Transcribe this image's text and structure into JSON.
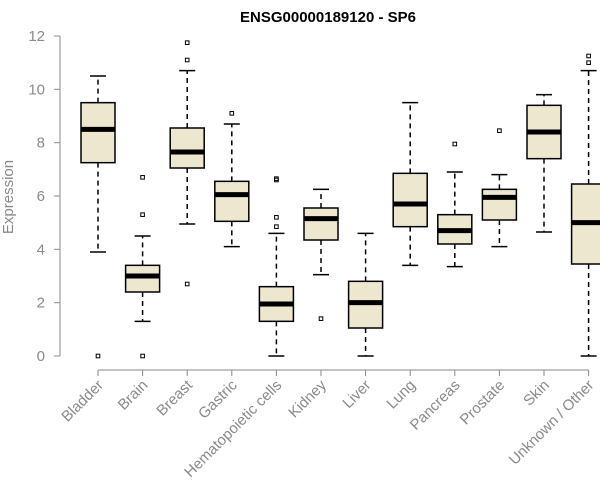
{
  "chart_data": {
    "type": "boxplot",
    "title": "ENSG00000189120 - SP6",
    "xlabel": "",
    "ylabel": "Expression",
    "ylim": [
      0,
      12
    ],
    "yticks": [
      0,
      2,
      4,
      6,
      8,
      10,
      12
    ],
    "colors": {
      "box_fill": "#ede7cf",
      "stroke": "#000000",
      "axis": "#8a8a8a"
    },
    "categories": [
      "Bladder",
      "Brain",
      "Breast",
      "Gastric",
      "Hematopoietic cells",
      "Kidney",
      "Liver",
      "Lung",
      "Pancreas",
      "Prostate",
      "Skin",
      "Unknown / Other"
    ],
    "boxes": [
      {
        "name": "Bladder",
        "whisker_low": 3.9,
        "q1": 7.25,
        "median": 8.5,
        "q3": 9.5,
        "whisker_high": 10.5,
        "outliers": [
          0
        ]
      },
      {
        "name": "Brain",
        "whisker_low": 1.3,
        "q1": 2.4,
        "median": 3.0,
        "q3": 3.4,
        "whisker_high": 4.5,
        "outliers": [
          0,
          5.3,
          6.7
        ]
      },
      {
        "name": "Breast",
        "whisker_low": 4.95,
        "q1": 7.05,
        "median": 7.65,
        "q3": 8.55,
        "whisker_high": 10.7,
        "outliers": [
          2.7,
          11.1,
          11.75
        ]
      },
      {
        "name": "Gastric",
        "whisker_low": 4.1,
        "q1": 5.05,
        "median": 6.05,
        "q3": 6.55,
        "whisker_high": 8.7,
        "outliers": [
          9.1
        ]
      },
      {
        "name": "Hematopoietic cells",
        "whisker_low": 0,
        "q1": 1.3,
        "median": 1.95,
        "q3": 2.6,
        "whisker_high": 4.6,
        "outliers": [
          4.85,
          5.2,
          6.6,
          6.65
        ]
      },
      {
        "name": "Kidney",
        "whisker_low": 3.05,
        "q1": 4.35,
        "median": 5.15,
        "q3": 5.55,
        "whisker_high": 6.25,
        "outliers": [
          1.4
        ]
      },
      {
        "name": "Liver",
        "whisker_low": 0,
        "q1": 1.05,
        "median": 2.0,
        "q3": 2.8,
        "whisker_high": 4.6,
        "outliers": []
      },
      {
        "name": "Lung",
        "whisker_low": 3.4,
        "q1": 4.85,
        "median": 5.7,
        "q3": 6.85,
        "whisker_high": 9.5,
        "outliers": []
      },
      {
        "name": "Pancreas",
        "whisker_low": 3.35,
        "q1": 4.2,
        "median": 4.7,
        "q3": 5.3,
        "whisker_high": 6.9,
        "outliers": [
          7.95
        ]
      },
      {
        "name": "Prostate",
        "whisker_low": 4.1,
        "q1": 5.1,
        "median": 5.95,
        "q3": 6.25,
        "whisker_high": 6.8,
        "outliers": [
          8.45
        ]
      },
      {
        "name": "Skin",
        "whisker_low": 4.65,
        "q1": 7.4,
        "median": 8.4,
        "q3": 9.4,
        "whisker_high": 9.8,
        "outliers": []
      },
      {
        "name": "Unknown / Other",
        "whisker_low": 0,
        "q1": 3.45,
        "median": 5.0,
        "q3": 6.45,
        "whisker_high": 10.7,
        "outliers": [
          11.0,
          11.25
        ]
      }
    ]
  }
}
